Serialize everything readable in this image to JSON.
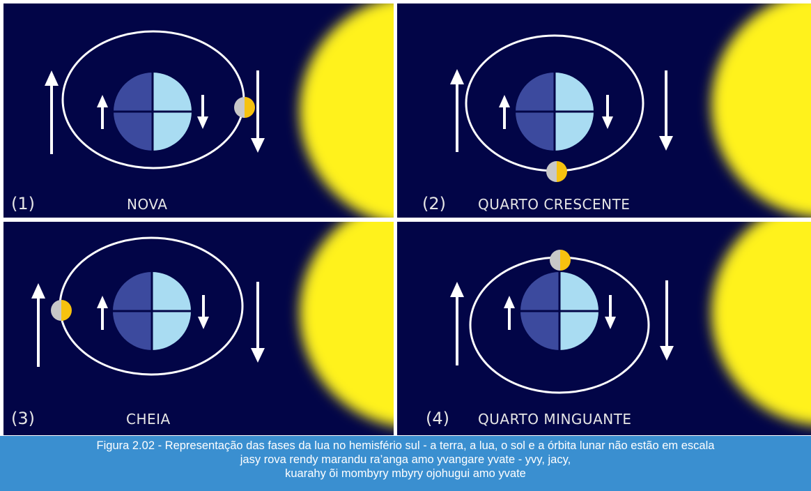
{
  "panels": [
    {
      "number": "(1)",
      "phase": "NOVA"
    },
    {
      "number": "(2)",
      "phase": "QUARTO CRESCENTE"
    },
    {
      "number": "(3)",
      "phase": "CHEIA"
    },
    {
      "number": "(4)",
      "phase": "QUARTO MINGUANTE"
    }
  ],
  "caption": {
    "line1": "Figura 2.02 - Representação das fases da lua no hemisfério sul - a terra, a lua, o sol e a órbita lunar não estão em escala",
    "line2": "jasy rova rendy marandu ra’anga amo yvangare yvate - yvy, jacy,",
    "line3": "kuarahy õi  mombyry mbyry ojohugui amo yvate"
  },
  "colors": {
    "background": "#020547",
    "sun": "#fff21a",
    "earth_dark": "#3c4a9e",
    "earth_light": "#a9dcf2",
    "moon_dark": "#c8c8c8",
    "moon_lit": "#f6c20f",
    "caption_bg": "#3a8fd0"
  }
}
